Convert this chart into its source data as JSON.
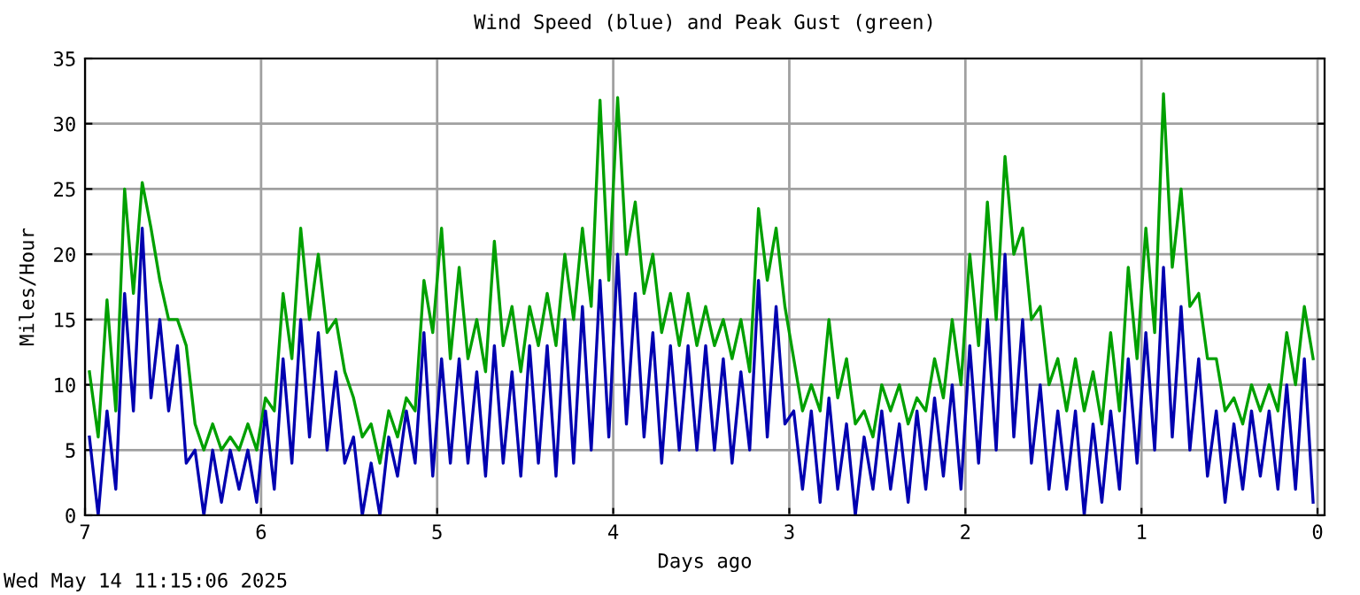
{
  "chart_data": {
    "type": "line",
    "title": "Wind Speed (blue) and Peak Gust (green)",
    "xlabel": "Days ago",
    "ylabel": "Miles/Hour",
    "annotations": [
      "Wed May 14 11:15:06 2025"
    ],
    "x": [
      6.975,
      6.925,
      6.875,
      6.825,
      6.775,
      6.725,
      6.675,
      6.625,
      6.575,
      6.525,
      6.475,
      6.425,
      6.375,
      6.325,
      6.275,
      6.225,
      6.175,
      6.125,
      6.075,
      6.025,
      5.975,
      5.925,
      5.875,
      5.825,
      5.775,
      5.725,
      5.675,
      5.625,
      5.575,
      5.525,
      5.475,
      5.425,
      5.375,
      5.325,
      5.275,
      5.225,
      5.175,
      5.125,
      5.075,
      5.025,
      4.975,
      4.925,
      4.875,
      4.825,
      4.775,
      4.725,
      4.675,
      4.625,
      4.575,
      4.525,
      4.475,
      4.425,
      4.375,
      4.325,
      4.275,
      4.225,
      4.175,
      4.125,
      4.075,
      4.025,
      3.975,
      3.925,
      3.875,
      3.825,
      3.775,
      3.725,
      3.675,
      3.625,
      3.575,
      3.525,
      3.475,
      3.425,
      3.375,
      3.325,
      3.275,
      3.225,
      3.175,
      3.125,
      3.075,
      3.025,
      2.975,
      2.925,
      2.875,
      2.825,
      2.775,
      2.725,
      2.675,
      2.625,
      2.575,
      2.525,
      2.475,
      2.425,
      2.375,
      2.325,
      2.275,
      2.225,
      2.175,
      2.125,
      2.075,
      2.025,
      1.975,
      1.925,
      1.875,
      1.825,
      1.775,
      1.725,
      1.675,
      1.625,
      1.575,
      1.525,
      1.475,
      1.425,
      1.375,
      1.325,
      1.275,
      1.225,
      1.175,
      1.125,
      1.075,
      1.025,
      0.975,
      0.925,
      0.875,
      0.825,
      0.775,
      0.725,
      0.675,
      0.625,
      0.575,
      0.525,
      0.475,
      0.425,
      0.375,
      0.325,
      0.275,
      0.225,
      0.175,
      0.125,
      0.075,
      0.025
    ],
    "series": [
      {
        "color": "#00a000",
        "values": [
          11,
          6,
          16.5,
          8,
          25,
          17,
          25.5,
          22,
          18,
          15,
          15,
          13,
          7,
          5,
          7,
          5,
          6,
          5,
          7,
          5,
          9,
          8,
          17,
          12,
          22,
          15,
          20,
          14,
          15,
          11,
          9,
          6,
          7,
          4,
          8,
          6,
          9,
          8,
          18,
          14,
          22,
          12,
          19,
          12,
          15,
          11,
          21,
          13,
          16,
          11,
          16,
          13,
          17,
          13,
          20,
          15,
          22,
          16,
          31.8,
          18,
          32,
          20,
          24,
          17,
          20,
          14,
          17,
          13,
          17,
          13,
          16,
          13,
          15,
          12,
          15,
          11,
          23.5,
          18,
          22,
          16,
          12,
          8,
          10,
          8,
          15,
          9,
          12,
          7,
          8,
          6,
          10,
          8,
          10,
          7,
          9,
          8,
          12,
          9,
          15,
          10,
          20,
          13,
          24,
          15,
          27.5,
          20,
          22,
          15,
          16,
          10,
          12,
          8,
          12,
          8,
          11,
          7,
          14,
          8,
          19,
          12,
          22,
          14,
          32.3,
          19,
          25,
          16,
          17,
          12,
          12,
          8,
          9,
          7,
          10,
          8,
          10,
          8,
          14,
          10,
          16,
          12
        ]
      },
      {
        "color": "#0000b0",
        "values": [
          6,
          0,
          8,
          2,
          17,
          8,
          22,
          9,
          15,
          8,
          13,
          4,
          5,
          0,
          5,
          1,
          5,
          2,
          5,
          1,
          8,
          2,
          12,
          4,
          15,
          6,
          14,
          5,
          11,
          4,
          6,
          0,
          4,
          0,
          6,
          3,
          8,
          4,
          14,
          3,
          12,
          4,
          12,
          4,
          11,
          3,
          13,
          4,
          11,
          3,
          13,
          4,
          13,
          3,
          15,
          4,
          16,
          5,
          18,
          6,
          20,
          7,
          17,
          6,
          14,
          4,
          13,
          5,
          13,
          5,
          13,
          5,
          12,
          4,
          11,
          5,
          18,
          6,
          16,
          7,
          8,
          2,
          8,
          1,
          9,
          2,
          7,
          0,
          6,
          2,
          8,
          2,
          7,
          1,
          8,
          2,
          9,
          3,
          10,
          2,
          13,
          4,
          15,
          5,
          20,
          6,
          15,
          4,
          10,
          2,
          8,
          2,
          8,
          0,
          7,
          1,
          8,
          2,
          12,
          4,
          14,
          5,
          19,
          6,
          16,
          5,
          12,
          3,
          8,
          1,
          7,
          2,
          8,
          3,
          8,
          2,
          10,
          2,
          12,
          1
        ]
      }
    ],
    "xlim": [
      7,
      -0.04
    ],
    "xticks": [
      7,
      6,
      5,
      4,
      3,
      2,
      1,
      0
    ],
    "ylim": [
      0,
      35
    ],
    "yticks": [
      0,
      5,
      10,
      15,
      20,
      25,
      30,
      35
    ],
    "grid": true
  }
}
